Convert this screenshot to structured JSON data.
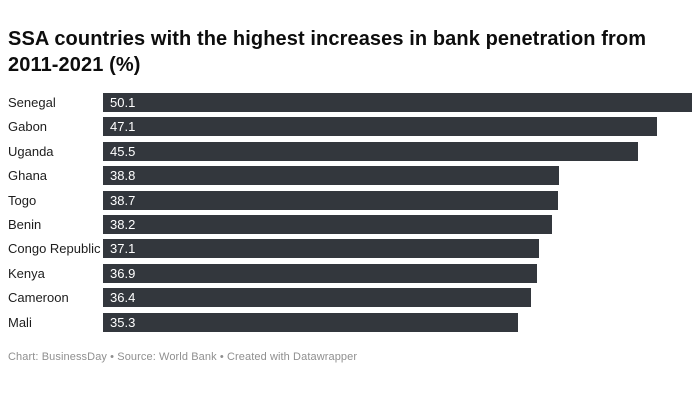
{
  "title": "SSA countries with the highest increases in bank penetration from 2011-2021 (%)",
  "footer": "Chart: BusinessDay • Source: World Bank • Created with Datawrapper",
  "colors": {
    "background": "#ffffff",
    "bar": "#33373d",
    "bar_value_text": "#ffffff",
    "title_text": "#0d0d0d",
    "country_label_text": "#1d1d1d",
    "footer_text": "#8f8f8f"
  },
  "chart_data": {
    "type": "bar",
    "orientation": "horizontal",
    "title": "SSA countries with the highest increases in bank penetration from 2011-2021 (%)",
    "xlabel": "",
    "ylabel": "",
    "categories": [
      "Senegal",
      "Gabon",
      "Uganda",
      "Ghana",
      "Togo",
      "Benin",
      "Congo Republic",
      "Kenya",
      "Cameroon",
      "Mali"
    ],
    "values": [
      50.1,
      47.1,
      45.5,
      38.8,
      38.7,
      38.2,
      37.1,
      36.9,
      36.4,
      35.3
    ],
    "xlim": [
      0,
      50.1
    ],
    "grid": false,
    "legend": false,
    "value_labels": "inside-bar-start",
    "bar_color": "#33373d",
    "source_note": "Chart: BusinessDay • Source: World Bank • Created with Datawrapper"
  }
}
